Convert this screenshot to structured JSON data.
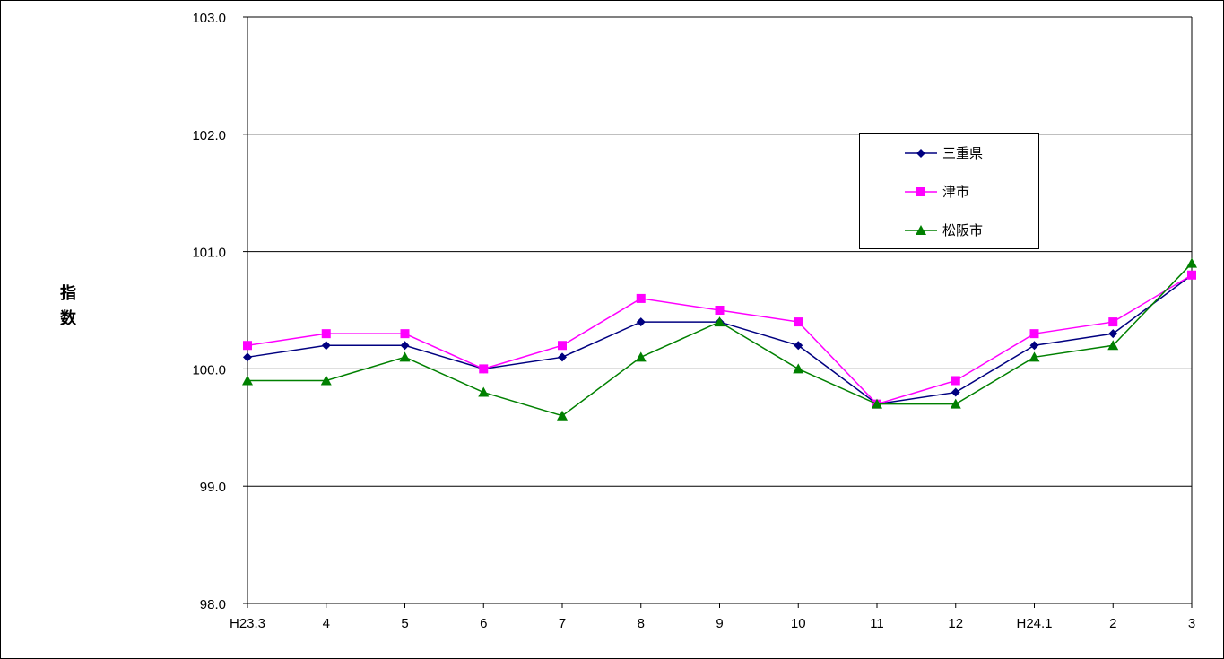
{
  "chart_data": {
    "type": "line",
    "title": "",
    "xlabel": "",
    "ylabel": "指数",
    "ylabel_chars": [
      "指",
      "数"
    ],
    "categories": [
      "H23.3",
      "4",
      "5",
      "6",
      "7",
      "8",
      "9",
      "10",
      "11",
      "12",
      "H24.1",
      "2",
      "3"
    ],
    "ylim": [
      98.0,
      103.0
    ],
    "yticks": [
      "98.0",
      "99.0",
      "100.0",
      "101.0",
      "102.0",
      "103.0"
    ],
    "grid": true,
    "legend_position": "top-right",
    "series": [
      {
        "name": "三重県",
        "color": "#000080",
        "marker": "diamond",
        "values": [
          100.1,
          100.2,
          100.2,
          100.0,
          100.1,
          100.4,
          100.4,
          100.2,
          99.7,
          99.8,
          100.2,
          100.3,
          100.8
        ]
      },
      {
        "name": "津市",
        "color": "#ff00ff",
        "marker": "square",
        "values": [
          100.2,
          100.3,
          100.3,
          100.0,
          100.2,
          100.6,
          100.5,
          100.4,
          99.7,
          99.9,
          100.3,
          100.4,
          100.8
        ]
      },
      {
        "name": "松阪市",
        "color": "#008000",
        "marker": "triangle",
        "values": [
          99.9,
          99.9,
          100.1,
          99.8,
          99.6,
          100.1,
          100.4,
          100.0,
          99.7,
          99.7,
          100.1,
          100.2,
          100.9
        ]
      }
    ]
  }
}
